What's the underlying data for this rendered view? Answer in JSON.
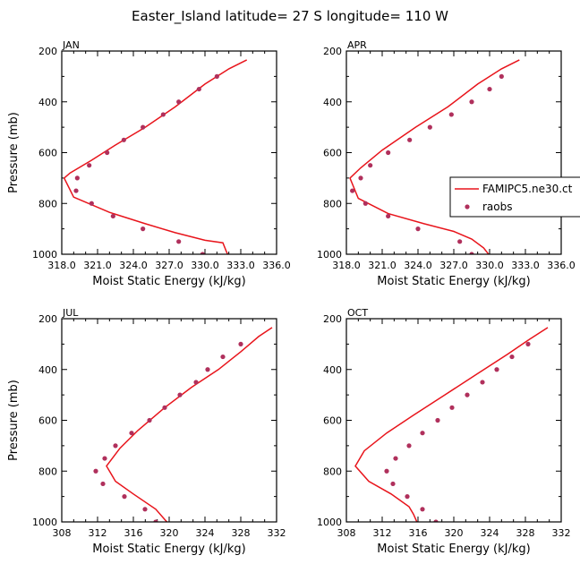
{
  "title": "Easter_Island  latitude= 27 S longitude= 110 W",
  "colors": {
    "model": "#e8141b",
    "obs": "#b0305c"
  },
  "legend": {
    "placement": "right",
    "model_label": "FAMIPC5.ne30.ct",
    "obs_label": "raobs"
  },
  "chart_data": [
    {
      "type": "line",
      "panel_label": "JAN",
      "xlabel": "Moist Static Energy (kJ/kg)",
      "ylabel": "Pressure (mb)",
      "xlim": [
        318,
        336
      ],
      "ylim": [
        200,
        1000
      ],
      "y_inverted": true,
      "xticks": [
        "318.0",
        "321.0",
        "324.0",
        "327.0",
        "330.0",
        "333.0",
        "336.0"
      ],
      "yticks": [
        "200",
        "400",
        "600",
        "800",
        "1000"
      ],
      "series": [
        {
          "name": "FAMIPC5.ne30.ct",
          "style": "line",
          "x": [
            333.5,
            332.0,
            330.0,
            327.5,
            325.0,
            322.5,
            320.5,
            318.7,
            318.2,
            319.0,
            322.0,
            325.0,
            327.5,
            330.0,
            331.5,
            331.8,
            332.0
          ],
          "y": [
            235,
            270,
            330,
            420,
            500,
            570,
            630,
            680,
            700,
            775,
            835,
            880,
            915,
            945,
            955,
            990,
            1010
          ]
        },
        {
          "name": "raobs",
          "style": "points",
          "x": [
            331.0,
            329.5,
            327.8,
            326.5,
            324.8,
            323.2,
            321.8,
            320.3,
            319.3,
            319.2,
            320.5,
            322.3,
            324.8,
            327.8,
            329.8
          ],
          "y": [
            300,
            350,
            400,
            450,
            500,
            550,
            600,
            650,
            700,
            750,
            800,
            850,
            900,
            950,
            1000
          ]
        }
      ]
    },
    {
      "type": "line",
      "panel_label": "APR",
      "xlabel": "Moist Static Energy (kJ/kg)",
      "ylabel": "",
      "xlim": [
        318,
        336
      ],
      "ylim": [
        200,
        1000
      ],
      "y_inverted": true,
      "xticks": [
        "318.0",
        "321.0",
        "324.0",
        "327.0",
        "330.0",
        "333.0",
        "336.0"
      ],
      "yticks": [
        "200",
        "400",
        "600",
        "800",
        "1000"
      ],
      "series": [
        {
          "name": "FAMIPC5.ne30.ct",
          "style": "line",
          "x": [
            332.5,
            331.0,
            329.0,
            326.5,
            323.8,
            321.0,
            319.2,
            318.3,
            319.0,
            321.5,
            324.5,
            327.0,
            328.5,
            329.5,
            330.0
          ],
          "y": [
            235,
            270,
            330,
            420,
            500,
            590,
            660,
            700,
            780,
            840,
            880,
            910,
            940,
            975,
            1005
          ]
        },
        {
          "name": "raobs",
          "style": "points",
          "x": [
            331.0,
            330.0,
            328.5,
            326.8,
            325.0,
            323.3,
            321.5,
            320.0,
            319.2,
            318.5,
            319.6,
            321.5,
            324.0,
            327.5,
            328.5
          ],
          "y": [
            300,
            350,
            400,
            450,
            500,
            550,
            600,
            650,
            700,
            750,
            800,
            850,
            900,
            950,
            1000
          ]
        }
      ]
    },
    {
      "type": "line",
      "panel_label": "JUL",
      "xlabel": "Moist Static Energy (kJ/kg)",
      "ylabel": "Pressure (mb)",
      "xlim": [
        308,
        332
      ],
      "ylim": [
        200,
        1000
      ],
      "y_inverted": true,
      "xticks": [
        "308",
        "312",
        "316",
        "320",
        "324",
        "328",
        "332"
      ],
      "yticks": [
        "200",
        "400",
        "600",
        "800",
        "1000"
      ],
      "series": [
        {
          "name": "FAMIPC5.ne30.ct",
          "style": "line",
          "x": [
            331.5,
            330.0,
            328.0,
            325.5,
            322.5,
            319.5,
            316.5,
            314.5,
            313.0,
            314.0,
            316.0,
            318.5,
            319.5,
            320.0
          ],
          "y": [
            235,
            270,
            330,
            400,
            470,
            550,
            640,
            710,
            780,
            840,
            890,
            950,
            990,
            1010
          ]
        },
        {
          "name": "raobs",
          "style": "points",
          "x": [
            328.0,
            326.0,
            324.3,
            323.0,
            321.2,
            319.5,
            317.8,
            315.8,
            314.0,
            312.8,
            311.8,
            312.6,
            315.0,
            317.3,
            318.5
          ],
          "y": [
            300,
            350,
            400,
            450,
            500,
            550,
            600,
            650,
            700,
            750,
            800,
            850,
            900,
            950,
            1000
          ]
        }
      ]
    },
    {
      "type": "line",
      "panel_label": "OCT",
      "xlabel": "Moist Static Energy (kJ/kg)",
      "ylabel": "",
      "xlim": [
        308,
        332
      ],
      "ylim": [
        200,
        1000
      ],
      "y_inverted": true,
      "xticks": [
        "308",
        "312",
        "316",
        "320",
        "324",
        "328",
        "332"
      ],
      "yticks": [
        "200",
        "400",
        "600",
        "800",
        "1000"
      ],
      "series": [
        {
          "name": "FAMIPC5.ne30.ct",
          "style": "line",
          "x": [
            330.5,
            328.5,
            326.0,
            322.5,
            319.0,
            315.5,
            312.5,
            310.0,
            309.0,
            310.5,
            313.0,
            315.0,
            315.5,
            316.0
          ],
          "y": [
            235,
            280,
            340,
            420,
            500,
            580,
            650,
            720,
            780,
            840,
            890,
            940,
            970,
            1010
          ]
        },
        {
          "name": "raobs",
          "style": "points",
          "x": [
            328.3,
            326.5,
            324.8,
            323.2,
            321.5,
            319.8,
            318.2,
            316.5,
            315.0,
            313.5,
            312.5,
            313.2,
            314.8,
            316.5,
            318.0
          ],
          "y": [
            300,
            350,
            400,
            450,
            500,
            550,
            600,
            650,
            700,
            750,
            800,
            850,
            900,
            950,
            1000
          ]
        }
      ]
    }
  ]
}
